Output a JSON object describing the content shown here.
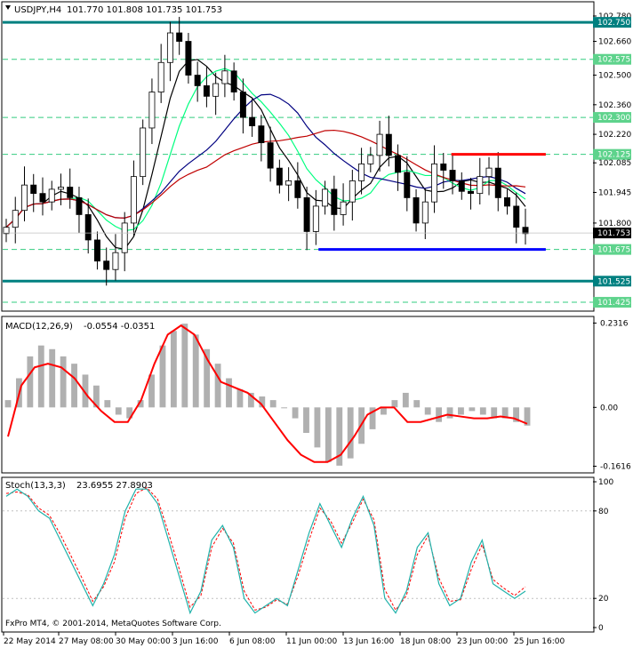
{
  "header": {
    "symbol": "USDJPY,H4",
    "ohlc": "101.770 101.808 101.735 101.753"
  },
  "copyright": "FxPro MT4, © 2001-2014, MetaQuotes Software Corp.",
  "colors": {
    "background": "#ffffff",
    "candle": "#000000",
    "teal_level": "#008080",
    "blue_support": "#0000ff",
    "red_resistance": "#ff0000",
    "green_levels": "#00c060",
    "sma_black": "#000000",
    "sma_green": "#00ff7f",
    "sma_navy": "#000080",
    "sma_red": "#c00000",
    "macd_hist": "#b0b0b0",
    "macd_signal": "#ff0000",
    "stoch_main": "#20b2aa",
    "stoch_signal": "#ff0000"
  },
  "chart_data": [
    {
      "type": "candlestick",
      "name": "USDJPY,H4",
      "y_axis_ticks": [
        "102.780",
        "102.660",
        "102.500",
        "102.360",
        "102.220",
        "102.085",
        "101.945",
        "101.800",
        "101.525",
        "101.425"
      ],
      "ylim": [
        101.4,
        102.78
      ],
      "x_tick_labels": [
        "22 May 2014",
        "27 May 08:00",
        "30 May 00:00",
        "3 Jun 16:00",
        "6 Jun 08:00",
        "11 Jun 00:00",
        "13 Jun 16:00",
        "18 Jun 08:00",
        "23 Jun 00:00",
        "25 Jun 16:00"
      ],
      "horizontal_levels": [
        {
          "label": "102.750",
          "value": 102.75,
          "style": "teal"
        },
        {
          "label": "102.575",
          "value": 102.575,
          "style": "green-dash"
        },
        {
          "label": "102.300",
          "value": 102.3,
          "style": "green-dash"
        },
        {
          "label": "102.125",
          "value": 102.125,
          "style": "green-dash"
        },
        {
          "label": "101.675",
          "value": 101.675,
          "style": "green-dash"
        },
        {
          "label": "101.525",
          "value": 101.525,
          "style": "teal"
        },
        {
          "label": "101.425",
          "value": 101.425,
          "style": "green-dash"
        }
      ],
      "current_price_label": "101.753",
      "trend_segments": [
        {
          "color": "blue",
          "value": 101.675,
          "from": 0.535,
          "to": 0.92
        },
        {
          "color": "red",
          "value": 102.125,
          "from": 0.76,
          "to": 0.92
        }
      ],
      "close_path": [
        101.78,
        101.86,
        101.98,
        101.94,
        101.9,
        101.96,
        101.97,
        101.92,
        101.84,
        101.72,
        101.62,
        101.58,
        101.66,
        101.8,
        102.02,
        102.25,
        102.42,
        102.56,
        102.7,
        102.66,
        102.5,
        102.45,
        102.4,
        102.46,
        102.52,
        102.42,
        102.3,
        102.26,
        102.18,
        102.06,
        101.98,
        102.0,
        101.92,
        101.76,
        101.88,
        101.96,
        101.84,
        101.9,
        102.0,
        102.08,
        102.12,
        102.22,
        102.12,
        102.04,
        101.92,
        101.8,
        101.9,
        102.08,
        102.05,
        102.0,
        101.95,
        101.94,
        102.02,
        102.06,
        101.92,
        101.88,
        101.78,
        101.75
      ]
    },
    {
      "type": "bar",
      "name": "MACD(12,26,9)",
      "values_text": "-0.0554 -0.0351",
      "y_axis_ticks": [
        "0.2316",
        "0.00",
        "-0.1616"
      ],
      "ylim": [
        -0.175,
        0.24
      ],
      "histogram": [
        0.02,
        0.08,
        0.14,
        0.17,
        0.16,
        0.14,
        0.12,
        0.09,
        0.06,
        0.02,
        -0.02,
        -0.03,
        0.02,
        0.09,
        0.17,
        0.21,
        0.23,
        0.2,
        0.16,
        0.12,
        0.08,
        0.05,
        0.04,
        0.03,
        0.02,
        0.0,
        -0.03,
        -0.07,
        -0.11,
        -0.15,
        -0.16,
        -0.14,
        -0.1,
        -0.06,
        -0.02,
        0.02,
        0.04,
        0.02,
        -0.02,
        -0.04,
        -0.03,
        -0.02,
        -0.01,
        -0.02,
        -0.03,
        -0.03,
        -0.04,
        -0.05
      ],
      "signal": [
        -0.08,
        0.06,
        0.11,
        0.12,
        0.11,
        0.08,
        0.03,
        -0.01,
        -0.04,
        -0.04,
        0.02,
        0.12,
        0.2,
        0.225,
        0.2,
        0.13,
        0.07,
        0.055,
        0.04,
        0.01,
        -0.04,
        -0.09,
        -0.13,
        -0.15,
        -0.15,
        -0.13,
        -0.08,
        -0.02,
        0.0,
        0.0,
        -0.04,
        -0.04,
        -0.03,
        -0.02,
        -0.025,
        -0.03,
        -0.03,
        -0.025,
        -0.03,
        -0.045
      ]
    },
    {
      "type": "line",
      "name": "Stoch(13,3,3)",
      "values_text": "23.6955 27.8903",
      "y_axis_ticks": [
        "100",
        "80",
        "20",
        "0"
      ],
      "ylim": [
        0,
        100
      ],
      "main": [
        90,
        95,
        90,
        80,
        75,
        60,
        45,
        30,
        15,
        30,
        50,
        80,
        95,
        95,
        85,
        60,
        35,
        10,
        25,
        60,
        70,
        55,
        20,
        10,
        15,
        20,
        15,
        40,
        65,
        85,
        70,
        55,
        75,
        90,
        70,
        20,
        10,
        25,
        55,
        65,
        30,
        15,
        20,
        45,
        60,
        30,
        25,
        20,
        25
      ],
      "signal": [
        92,
        93,
        91,
        82,
        77,
        64,
        49,
        34,
        18,
        28,
        45,
        75,
        92,
        96,
        88,
        65,
        40,
        14,
        22,
        55,
        68,
        58,
        25,
        12,
        14,
        19,
        16,
        36,
        60,
        82,
        73,
        58,
        72,
        88,
        74,
        26,
        12,
        22,
        50,
        63,
        34,
        18,
        19,
        40,
        57,
        33,
        27,
        22,
        28
      ]
    }
  ]
}
